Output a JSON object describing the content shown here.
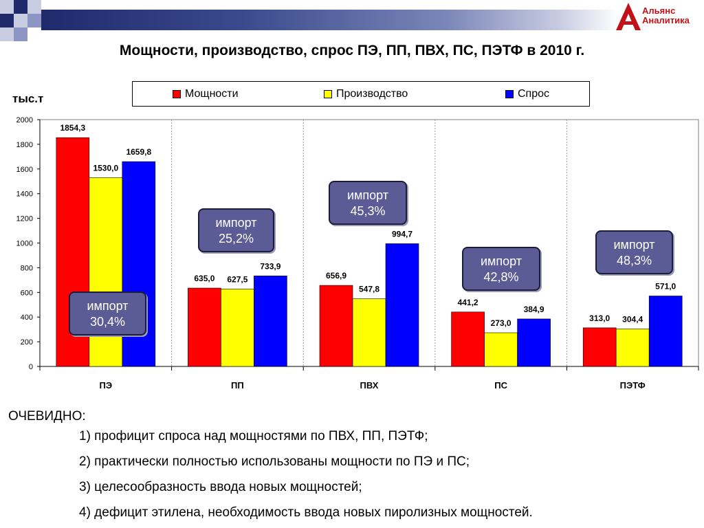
{
  "header": {
    "logo_line1": "Альянс",
    "logo_line2": "Аналитика"
  },
  "title": "Мощности, производство, спрос ПЭ, ПП, ПВХ, ПС, ПЭТФ в 2010 г.",
  "colors": {
    "capacity": "#ff0000",
    "production": "#ffff00",
    "demand": "#0000ff",
    "callout": "#5b5b95"
  },
  "chart_data": {
    "type": "bar",
    "ylabel": "тыс.т",
    "ylim": [
      0,
      2000
    ],
    "yticks": [
      "0",
      "200",
      "400",
      "600",
      "800",
      "1000",
      "1200",
      "1400",
      "1600",
      "1800",
      "2000"
    ],
    "grid": true,
    "legend_position": "top",
    "categories": [
      "ПЭ",
      "ПП",
      "ПВХ",
      "ПС",
      "ПЭТФ"
    ],
    "series": [
      {
        "name": "Мощности",
        "color": "#ff0000",
        "values": [
          1854.3,
          635.0,
          656.9,
          441.2,
          313.0
        ],
        "labels": [
          "1854,3",
          "635,0",
          "656,9",
          "441,2",
          "313,0"
        ]
      },
      {
        "name": "Производство",
        "color": "#ffff00",
        "values": [
          1530.0,
          627.5,
          547.8,
          273.0,
          304.4
        ],
        "labels": [
          "1530,0",
          "627,5",
          "547,8",
          "273,0",
          "304,4"
        ]
      },
      {
        "name": "Спрос",
        "color": "#0000ff",
        "values": [
          1659.8,
          733.9,
          994.7,
          384.9,
          571.0
        ],
        "labels": [
          "1659,8",
          "733,9",
          "994,7",
          "384,9",
          "571,0"
        ]
      }
    ],
    "annotations": [
      {
        "category": "ПЭ",
        "line1": "импорт",
        "line2": "30,4%"
      },
      {
        "category": "ПП",
        "line1": "импорт",
        "line2": "25,2%"
      },
      {
        "category": "ПВХ",
        "line1": "импорт",
        "line2": "45,3%"
      },
      {
        "category": "ПС",
        "line1": "импорт",
        "line2": "42,8%"
      },
      {
        "category": "ПЭТФ",
        "line1": "импорт",
        "line2": "48,3%"
      }
    ]
  },
  "notes": {
    "heading": "ОЧЕВИДНО:",
    "items": [
      "1) профицит спроса над мощностями по ПВХ, ПП, ПЭТФ;",
      "2) практически полностью использованы мощности по ПЭ и ПС;",
      "3) целесообразность ввода новых мощностей;",
      "4) дефицит этилена, необходимость ввода новых пиролизных мощностей."
    ]
  }
}
